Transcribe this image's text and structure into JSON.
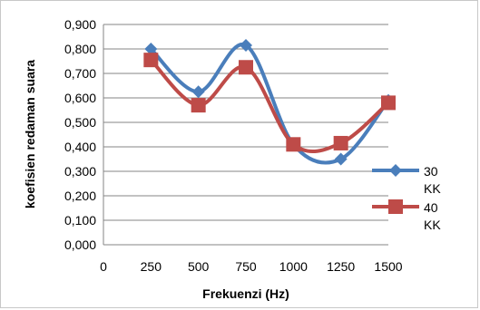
{
  "chart_data": {
    "type": "line",
    "xlabel": "Frekuenzi (Hz)",
    "ylabel": "koefisien redaman suara",
    "x_ticks": [
      "0",
      "250",
      "500",
      "750",
      "1000",
      "1250",
      "1500"
    ],
    "y_ticks": [
      "0,000",
      "0,100",
      "0,200",
      "0,300",
      "0,400",
      "0,500",
      "0,600",
      "0,700",
      "0,800",
      "0,900"
    ],
    "xlim": [
      0,
      1500
    ],
    "ylim": [
      0,
      0.9
    ],
    "grid": "horizontal",
    "legend_position": "right",
    "x": [
      250,
      500,
      750,
      1000,
      1250,
      1500
    ],
    "series": [
      {
        "name": "30 KK",
        "legend_lines": [
          "30",
          "KK"
        ],
        "color": "#4a7ebb",
        "marker": "diamond",
        "values": [
          0.8,
          0.625,
          0.815,
          0.41,
          0.35,
          0.59
        ]
      },
      {
        "name": "40 KK",
        "legend_lines": [
          "40",
          "KK"
        ],
        "color": "#be4b48",
        "marker": "square",
        "values": [
          0.755,
          0.57,
          0.725,
          0.41,
          0.415,
          0.58
        ]
      }
    ]
  }
}
